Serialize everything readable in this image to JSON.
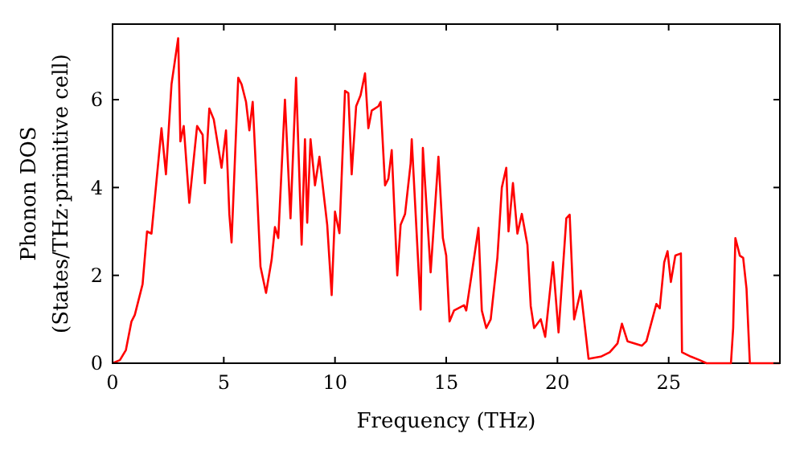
{
  "chart_data": {
    "type": "line",
    "xlabel": "Frequency (THz)",
    "ylabel": "Phonon DOS\n(States/THz·primitive cell)",
    "xlim": [
      0,
      30
    ],
    "ylim": [
      0,
      7.72
    ],
    "xticks": [
      0,
      5,
      10,
      15,
      20,
      25
    ],
    "yticks": [
      0,
      2,
      4,
      6
    ],
    "grid": false,
    "marker": "none",
    "line_style": "solid",
    "series": [
      {
        "color": "#ff0000",
        "x": [
          0,
          0.33,
          0.6,
          0.85,
          1.0,
          1.35,
          1.55,
          1.75,
          2.2,
          2.4,
          2.65,
          2.95,
          3.05,
          3.2,
          3.45,
          3.8,
          4.05,
          4.15,
          4.35,
          4.55,
          4.9,
          5.1,
          5.25,
          5.35,
          5.65,
          5.8,
          6.0,
          6.15,
          6.3,
          6.5,
          6.65,
          6.9,
          7.15,
          7.3,
          7.45,
          7.75,
          8.0,
          8.25,
          8.5,
          8.65,
          8.75,
          8.9,
          9.1,
          9.3,
          9.65,
          9.85,
          10.0,
          10.2,
          10.45,
          10.6,
          10.75,
          10.95,
          11.15,
          11.35,
          11.5,
          11.65,
          11.95,
          12.05,
          12.25,
          12.4,
          12.55,
          12.8,
          12.95,
          13.15,
          13.4,
          13.45,
          13.85,
          13.95,
          14.3,
          14.65,
          14.85,
          15.0,
          15.15,
          15.35,
          15.8,
          15.9,
          16.15,
          16.45,
          16.6,
          16.8,
          17.0,
          17.3,
          17.5,
          17.7,
          17.8,
          18.0,
          18.2,
          18.4,
          18.65,
          18.8,
          18.95,
          19.25,
          19.45,
          19.8,
          20.05,
          20.4,
          20.55,
          20.75,
          21.05,
          21.4,
          21.95,
          22.35,
          22.7,
          22.9,
          23.15,
          23.8,
          24.0,
          24.45,
          24.6,
          24.8,
          24.95,
          25.1,
          25.3,
          25.55,
          25.6,
          26.0,
          26.35,
          26.7,
          27.8,
          27.9,
          28.0,
          28.2,
          28.35,
          28.5,
          28.65,
          30
        ],
        "values": [
          0,
          0.07,
          0.3,
          0.95,
          1.1,
          1.8,
          3.0,
          2.95,
          5.35,
          4.3,
          6.35,
          7.4,
          5.05,
          5.4,
          3.65,
          5.4,
          5.2,
          4.1,
          5.8,
          5.55,
          4.45,
          5.3,
          3.4,
          2.75,
          6.5,
          6.35,
          5.95,
          5.3,
          5.95,
          3.85,
          2.2,
          1.6,
          2.35,
          3.1,
          2.85,
          6.0,
          3.3,
          6.5,
          2.7,
          5.1,
          3.2,
          5.1,
          4.05,
          4.7,
          3.15,
          1.55,
          3.45,
          2.96,
          6.2,
          6.15,
          4.3,
          5.85,
          6.1,
          6.6,
          5.35,
          5.75,
          5.85,
          5.95,
          4.05,
          4.2,
          4.85,
          2.0,
          3.15,
          3.4,
          4.55,
          5.1,
          1.22,
          4.9,
          2.07,
          4.7,
          2.85,
          2.45,
          0.95,
          1.2,
          1.32,
          1.2,
          2.05,
          3.08,
          1.2,
          0.8,
          1.0,
          2.4,
          4.0,
          4.45,
          3.0,
          4.1,
          2.95,
          3.4,
          2.7,
          1.3,
          0.8,
          1.0,
          0.6,
          2.3,
          0.7,
          3.3,
          3.38,
          1.0,
          1.65,
          0.1,
          0.15,
          0.25,
          0.45,
          0.9,
          0.5,
          0.4,
          0.5,
          1.35,
          1.25,
          2.3,
          2.55,
          1.85,
          2.45,
          2.5,
          0.25,
          0.15,
          0.08,
          0,
          0,
          0.8,
          2.85,
          2.45,
          2.4,
          1.7,
          0,
          0
        ]
      }
    ]
  }
}
